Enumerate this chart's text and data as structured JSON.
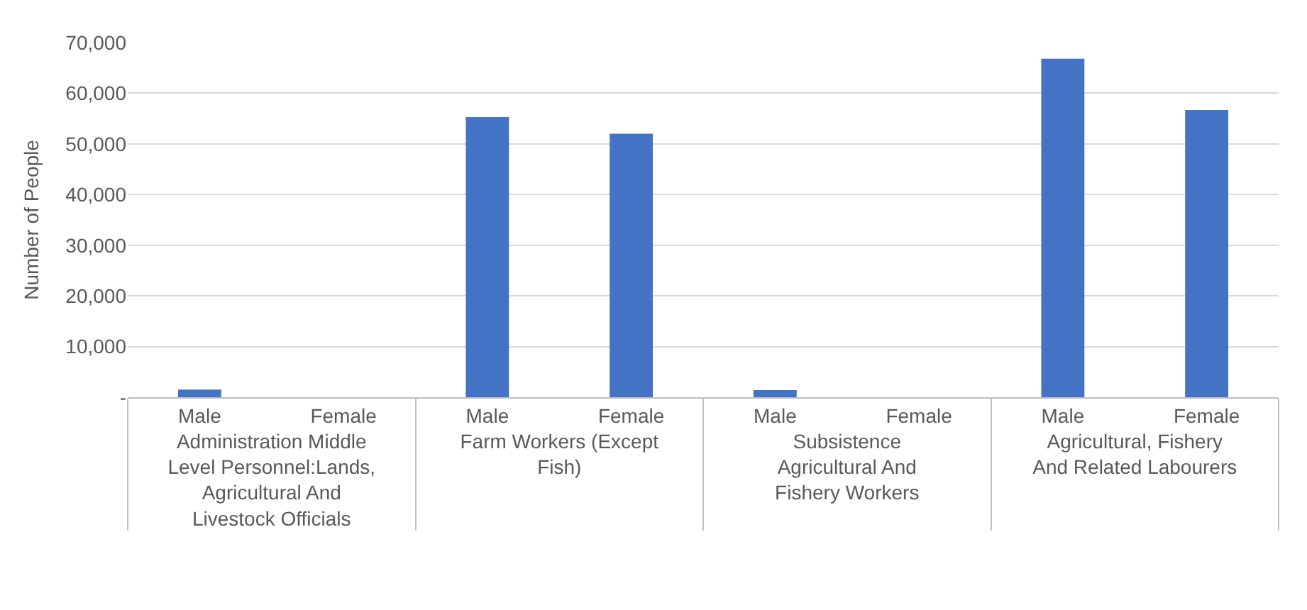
{
  "chart_data": {
    "type": "bar",
    "ylabel": "Number of People",
    "categories": [
      "Administration Middle Level Personnel:Lands, Agricultural And Livestock Officials",
      "Farm Workers (Except Fish)",
      "Subsistence Agricultural And Fishery Workers",
      "Agricultural, Fishery And Related Labourers"
    ],
    "series": [
      {
        "name": "Male",
        "color": "#4472c4",
        "values": [
          1500,
          55300,
          1400,
          66800
        ]
      },
      {
        "name": "Female",
        "color": "#4472c4",
        "values": [
          0,
          52000,
          0,
          56700
        ]
      }
    ],
    "ylim": [
      0,
      70000
    ],
    "yticks": [
      {
        "value": 0,
        "label": "-"
      },
      {
        "value": 10000,
        "label": "10,000"
      },
      {
        "value": 20000,
        "label": "20,000"
      },
      {
        "value": 30000,
        "label": "30,000"
      },
      {
        "value": 40000,
        "label": "40,000"
      },
      {
        "value": 50000,
        "label": "50,000"
      },
      {
        "value": 60000,
        "label": "60,000"
      },
      {
        "value": 70000,
        "label": "70,000"
      }
    ],
    "grid": "y"
  }
}
